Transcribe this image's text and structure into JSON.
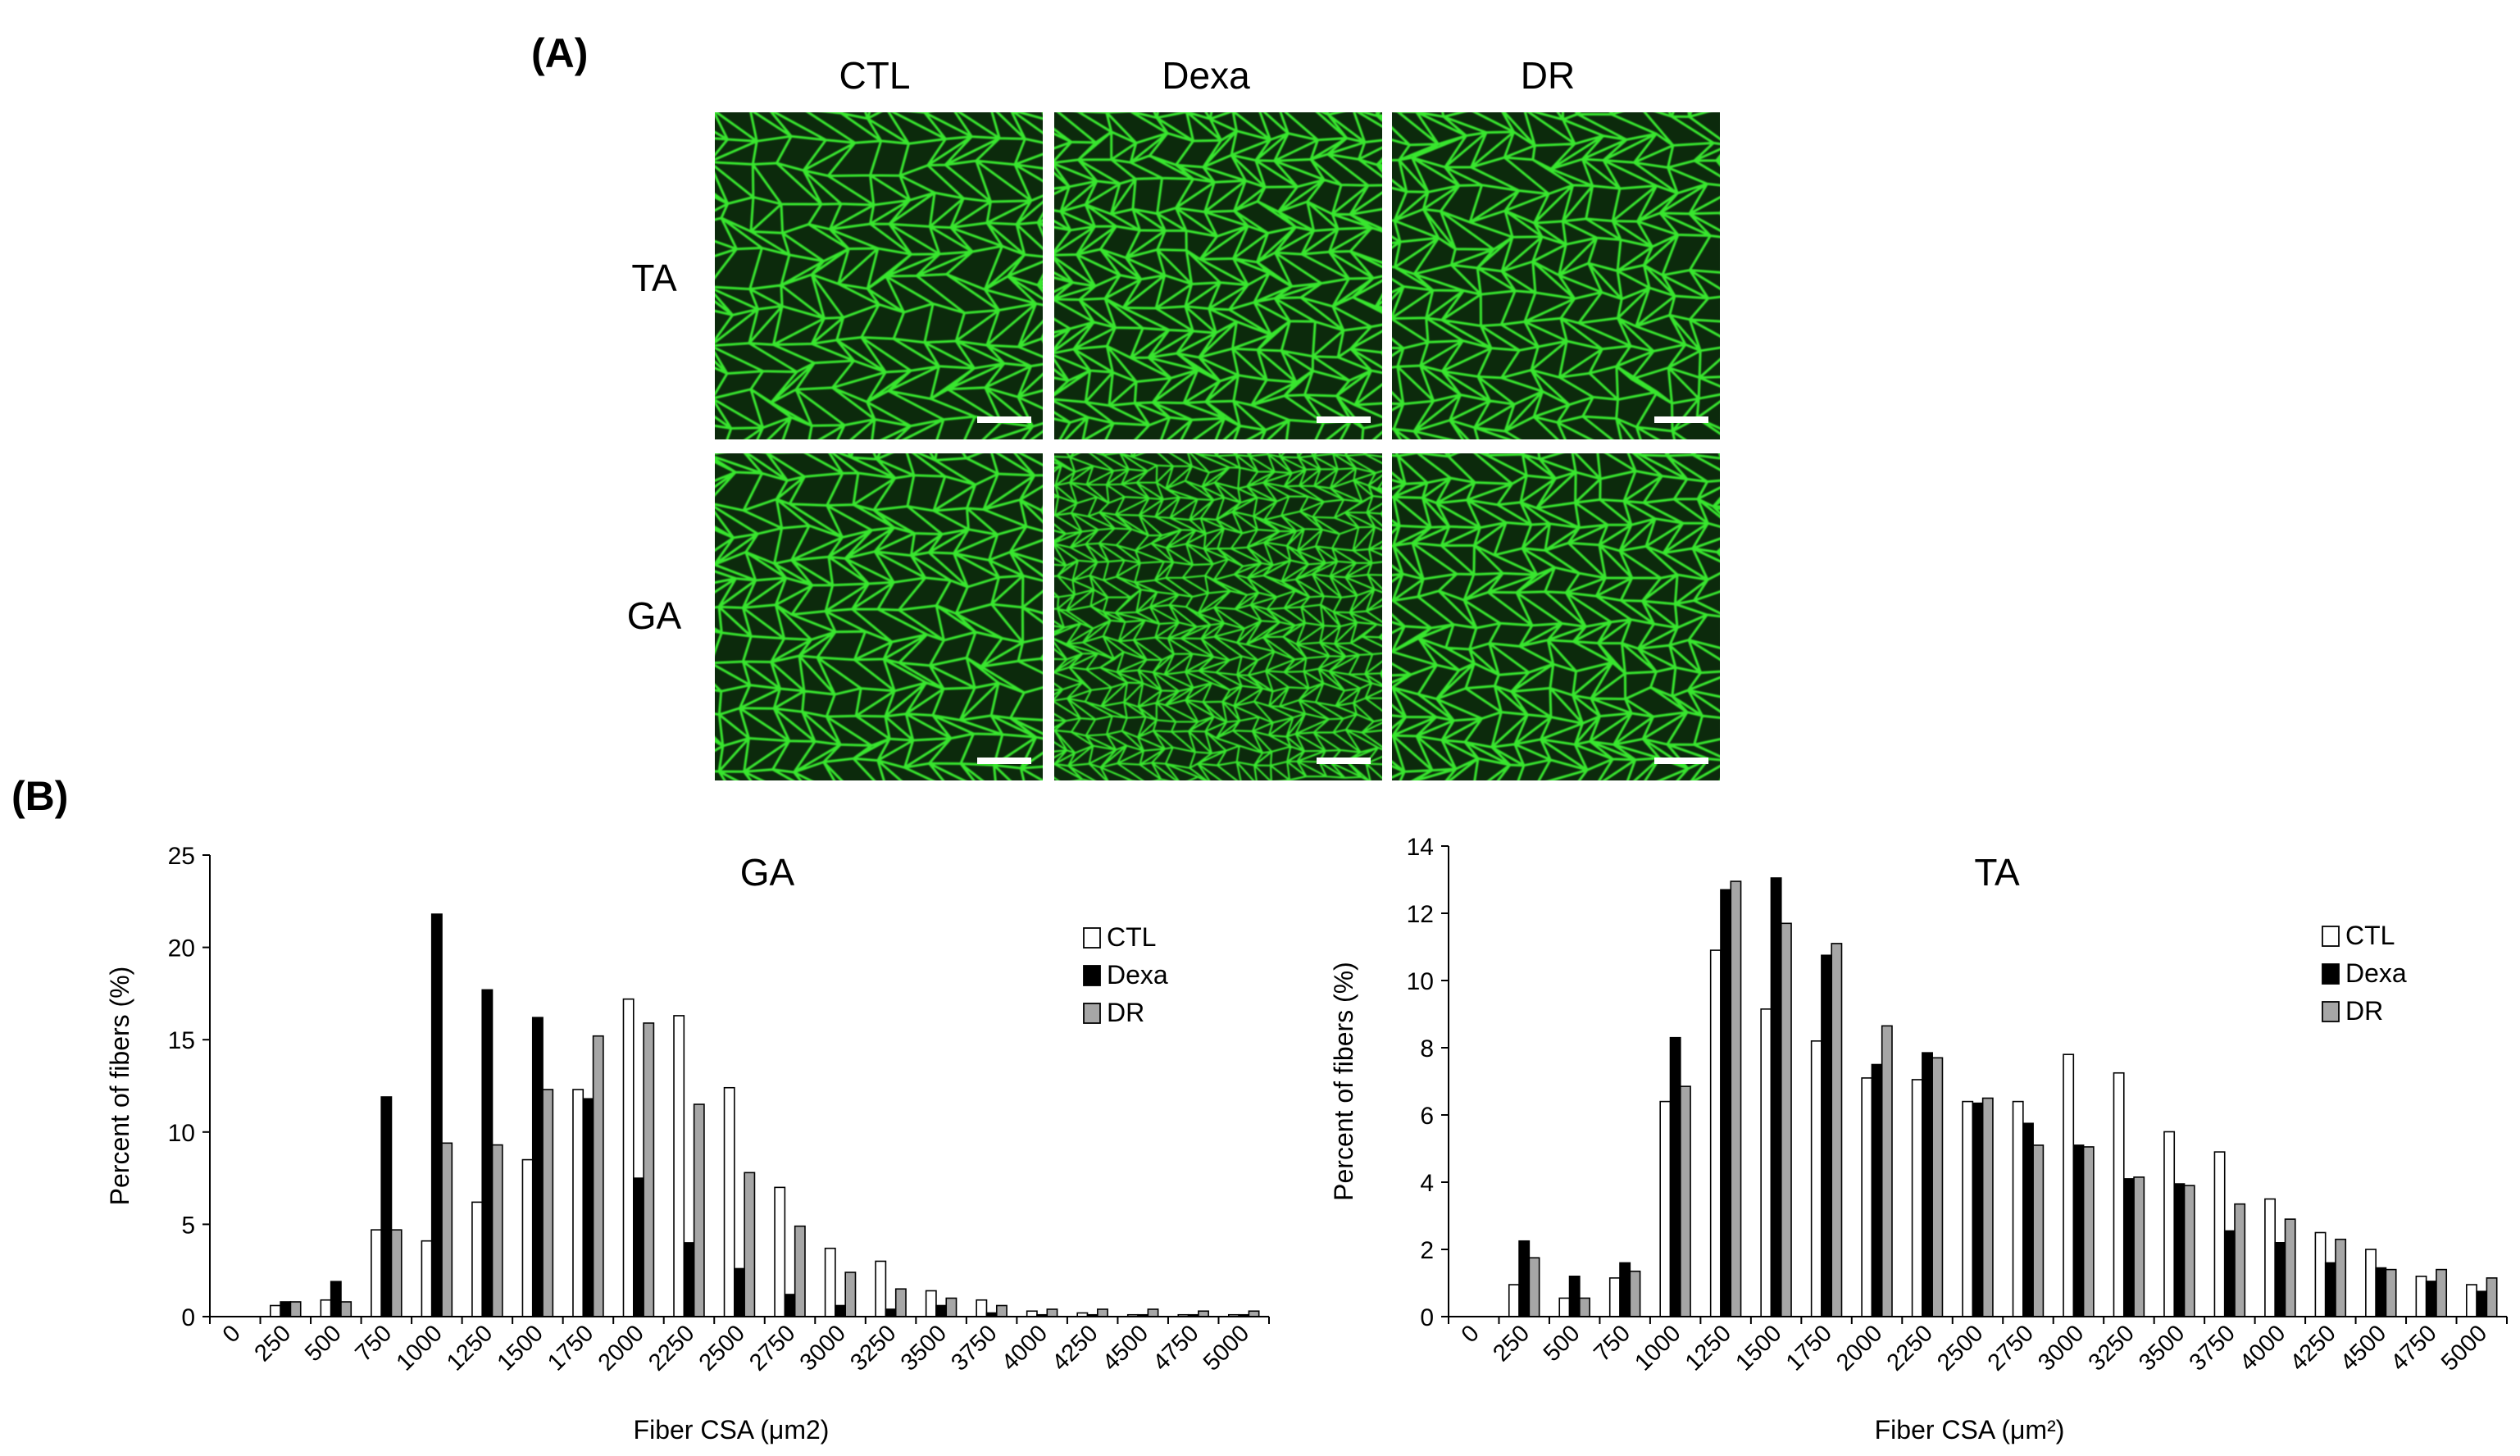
{
  "panel_a": {
    "label": "(A)",
    "columns": [
      "CTL",
      "Dexa",
      "DR"
    ],
    "rows": [
      "TA",
      "GA"
    ],
    "colors": {
      "background": "#0c2a0c",
      "membrane": "#39e62f"
    }
  },
  "panel_b": {
    "label": "(B)"
  },
  "chart_data": [
    {
      "type": "bar",
      "title": "GA",
      "xlabel": "Fiber CSA (μm2)",
      "ylabel": "Percent of fibers (%)",
      "ylim": [
        0,
        25
      ],
      "yticks": [
        0,
        5,
        10,
        15,
        20,
        25
      ],
      "categories": [
        "0",
        "250",
        "500",
        "750",
        "1000",
        "1250",
        "1500",
        "1750",
        "2000",
        "2250",
        "2500",
        "2750",
        "3000",
        "3250",
        "3500",
        "3750",
        "4000",
        "4250",
        "4500",
        "4750",
        "5000"
      ],
      "series": [
        {
          "name": "CTL",
          "color": "#ffffff",
          "values": [
            0,
            0.6,
            0.9,
            4.7,
            4.1,
            6.2,
            8.5,
            12.3,
            17.2,
            16.3,
            12.4,
            7.0,
            3.7,
            3.0,
            1.4,
            0.9,
            0.3,
            0.2,
            0.1,
            0.1,
            0.1
          ]
        },
        {
          "name": "Dexa",
          "color": "#000000",
          "values": [
            0,
            0.8,
            1.9,
            11.9,
            21.8,
            17.7,
            16.2,
            11.8,
            7.5,
            4.0,
            2.6,
            1.2,
            0.6,
            0.4,
            0.6,
            0.2,
            0.1,
            0.1,
            0.1,
            0.1,
            0.1
          ]
        },
        {
          "name": "DR",
          "color": "#a6a6a6",
          "values": [
            0,
            0.8,
            0.8,
            4.7,
            9.4,
            9.3,
            12.3,
            15.2,
            15.9,
            11.5,
            7.8,
            4.9,
            2.4,
            1.5,
            1.0,
            0.6,
            0.4,
            0.4,
            0.4,
            0.3,
            0.3
          ]
        }
      ],
      "legend": "right"
    },
    {
      "type": "bar",
      "title": "TA",
      "xlabel": "Fiber CSA (μm²)",
      "ylabel": "Percent of fibers (%)",
      "ylim": [
        0,
        14
      ],
      "yticks": [
        0,
        2,
        4,
        6,
        8,
        10,
        12,
        14
      ],
      "categories": [
        "0",
        "250",
        "500",
        "750",
        "1000",
        "1250",
        "1500",
        "1750",
        "2000",
        "2250",
        "2500",
        "2750",
        "3000",
        "3250",
        "3500",
        "3750",
        "4000",
        "4250",
        "4500",
        "4750",
        "5000"
      ],
      "series": [
        {
          "name": "CTL",
          "color": "#ffffff",
          "values": [
            0,
            0.95,
            0.55,
            1.15,
            6.4,
            10.9,
            9.15,
            8.2,
            7.1,
            7.05,
            6.4,
            6.4,
            7.8,
            7.25,
            5.5,
            4.9,
            3.5,
            2.5,
            2.0,
            1.2,
            0.95
          ]
        },
        {
          "name": "Dexa",
          "color": "#000000",
          "values": [
            0,
            2.25,
            1.2,
            1.6,
            8.3,
            12.7,
            13.05,
            10.75,
            7.5,
            7.85,
            6.35,
            5.75,
            5.1,
            4.1,
            3.95,
            2.55,
            2.2,
            1.6,
            1.45,
            1.05,
            0.75
          ]
        },
        {
          "name": "DR",
          "color": "#a6a6a6",
          "values": [
            0,
            1.75,
            0.55,
            1.35,
            6.85,
            12.95,
            11.7,
            11.1,
            8.65,
            7.7,
            6.5,
            5.1,
            5.05,
            4.15,
            3.9,
            3.35,
            2.9,
            2.3,
            1.4,
            1.4,
            1.15
          ]
        }
      ],
      "legend": "right"
    }
  ]
}
